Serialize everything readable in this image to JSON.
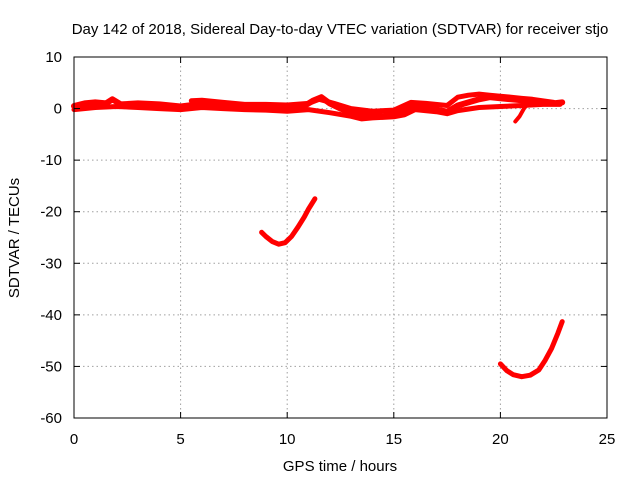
{
  "chart_data": {
    "type": "line",
    "title": "Day 142 of 2018, Sidereal Day-to-day VTEC variation (SDTVAR) for receiver stjo",
    "xlabel": "GPS time / hours",
    "ylabel": "SDTVAR / TECUs",
    "xlim": [
      0,
      25
    ],
    "ylim": [
      -60,
      10
    ],
    "xticks": [
      0,
      5,
      10,
      15,
      20,
      25
    ],
    "yticks": [
      10,
      0,
      -10,
      -20,
      -30,
      -40,
      -50,
      -60
    ],
    "xtick_labels": [
      "0",
      "5",
      "10",
      "15",
      "20",
      "25"
    ],
    "ytick_labels": [
      "10",
      "0",
      "-10",
      "-20",
      "-30",
      "-40",
      "-50",
      "-60"
    ],
    "grid": true,
    "color": "#ff0000",
    "series": [
      {
        "name": "main-band",
        "x": [
          0,
          0.5,
          1.0,
          1.5,
          1.8,
          2.2,
          3.0,
          4.0,
          5.0,
          5.8,
          6.0,
          7.0,
          8.0,
          9.0,
          10.0,
          10.8,
          11.2,
          11.6,
          12.0,
          12.5,
          13.0,
          13.5,
          14.0,
          14.5,
          15.0,
          15.5,
          16.0,
          16.5,
          17.0,
          17.5,
          18.0,
          18.5,
          19.0,
          19.5,
          20.0,
          20.5,
          21.0,
          21.5,
          22.0,
          22.5,
          22.9
        ],
        "y": [
          0.5,
          1.0,
          1.2,
          1.0,
          1.8,
          0.8,
          1.0,
          0.8,
          0.4,
          0.8,
          1.2,
          0.8,
          0.5,
          0.6,
          0.3,
          0.5,
          1.5,
          2.2,
          1.0,
          0.0,
          -0.8,
          -1.2,
          -1.0,
          -1.5,
          -1.0,
          -0.3,
          0.6,
          0.2,
          -0.2,
          -0.6,
          0.6,
          1.2,
          1.8,
          2.2,
          2.0,
          1.8,
          1.6,
          1.4,
          1.2,
          1.0,
          1.2
        ]
      },
      {
        "name": "main-band-upper",
        "x": [
          5.5,
          6.0,
          7.0,
          8.0,
          9.0,
          10.0,
          11.0,
          11.5,
          12.2,
          13.0,
          14.0,
          15.0,
          15.8,
          16.5,
          17.5,
          18.0,
          18.5,
          19.0,
          19.5,
          20.0,
          20.5,
          21.0,
          21.5,
          22.0,
          22.5
        ],
        "y": [
          1.5,
          1.6,
          1.2,
          0.8,
          0.8,
          0.7,
          1.0,
          1.8,
          1.0,
          0.0,
          -0.5,
          -0.3,
          1.2,
          1.0,
          0.6,
          2.2,
          2.6,
          2.8,
          2.6,
          2.4,
          2.2,
          2.0,
          1.8,
          1.5,
          1.2
        ]
      },
      {
        "name": "main-band-lower",
        "x": [
          0,
          1.0,
          2.0,
          3.0,
          4.0,
          5.0,
          6.0,
          7.0,
          8.0,
          9.0,
          10.0,
          11.0,
          12.0,
          13.0,
          13.5,
          14.0,
          15.0,
          15.5,
          16.0,
          17.0,
          17.5,
          18.0,
          19.0,
          20.0,
          21.0,
          22.0,
          22.8
        ],
        "y": [
          -0.2,
          0.2,
          0.4,
          0.2,
          0.0,
          -0.2,
          0.2,
          0.0,
          -0.2,
          -0.3,
          -0.5,
          -0.2,
          -0.8,
          -1.5,
          -2.0,
          -1.8,
          -1.6,
          -1.2,
          -0.2,
          -0.6,
          -1.0,
          -0.4,
          0.2,
          0.4,
          0.6,
          0.8,
          0.8
        ]
      },
      {
        "name": "short-drop",
        "x": [
          20.7,
          20.9,
          21.1,
          21.3
        ],
        "y": [
          -2.5,
          -1.5,
          0.0,
          1.0
        ]
      },
      {
        "name": "arc-10h",
        "x": [
          8.8,
          9.0,
          9.3,
          9.6,
          9.9,
          10.2,
          10.5,
          10.8,
          11.0,
          11.3
        ],
        "y": [
          -24.0,
          -24.8,
          -25.8,
          -26.3,
          -26.0,
          -24.8,
          -23.0,
          -21.0,
          -19.5,
          -17.5
        ]
      },
      {
        "name": "arc-21h",
        "x": [
          20.0,
          20.3,
          20.6,
          21.0,
          21.4,
          21.8,
          22.1,
          22.4,
          22.7,
          22.9
        ],
        "y": [
          -49.5,
          -50.8,
          -51.6,
          -52.0,
          -51.7,
          -50.7,
          -48.8,
          -46.5,
          -43.5,
          -41.3
        ]
      }
    ]
  }
}
